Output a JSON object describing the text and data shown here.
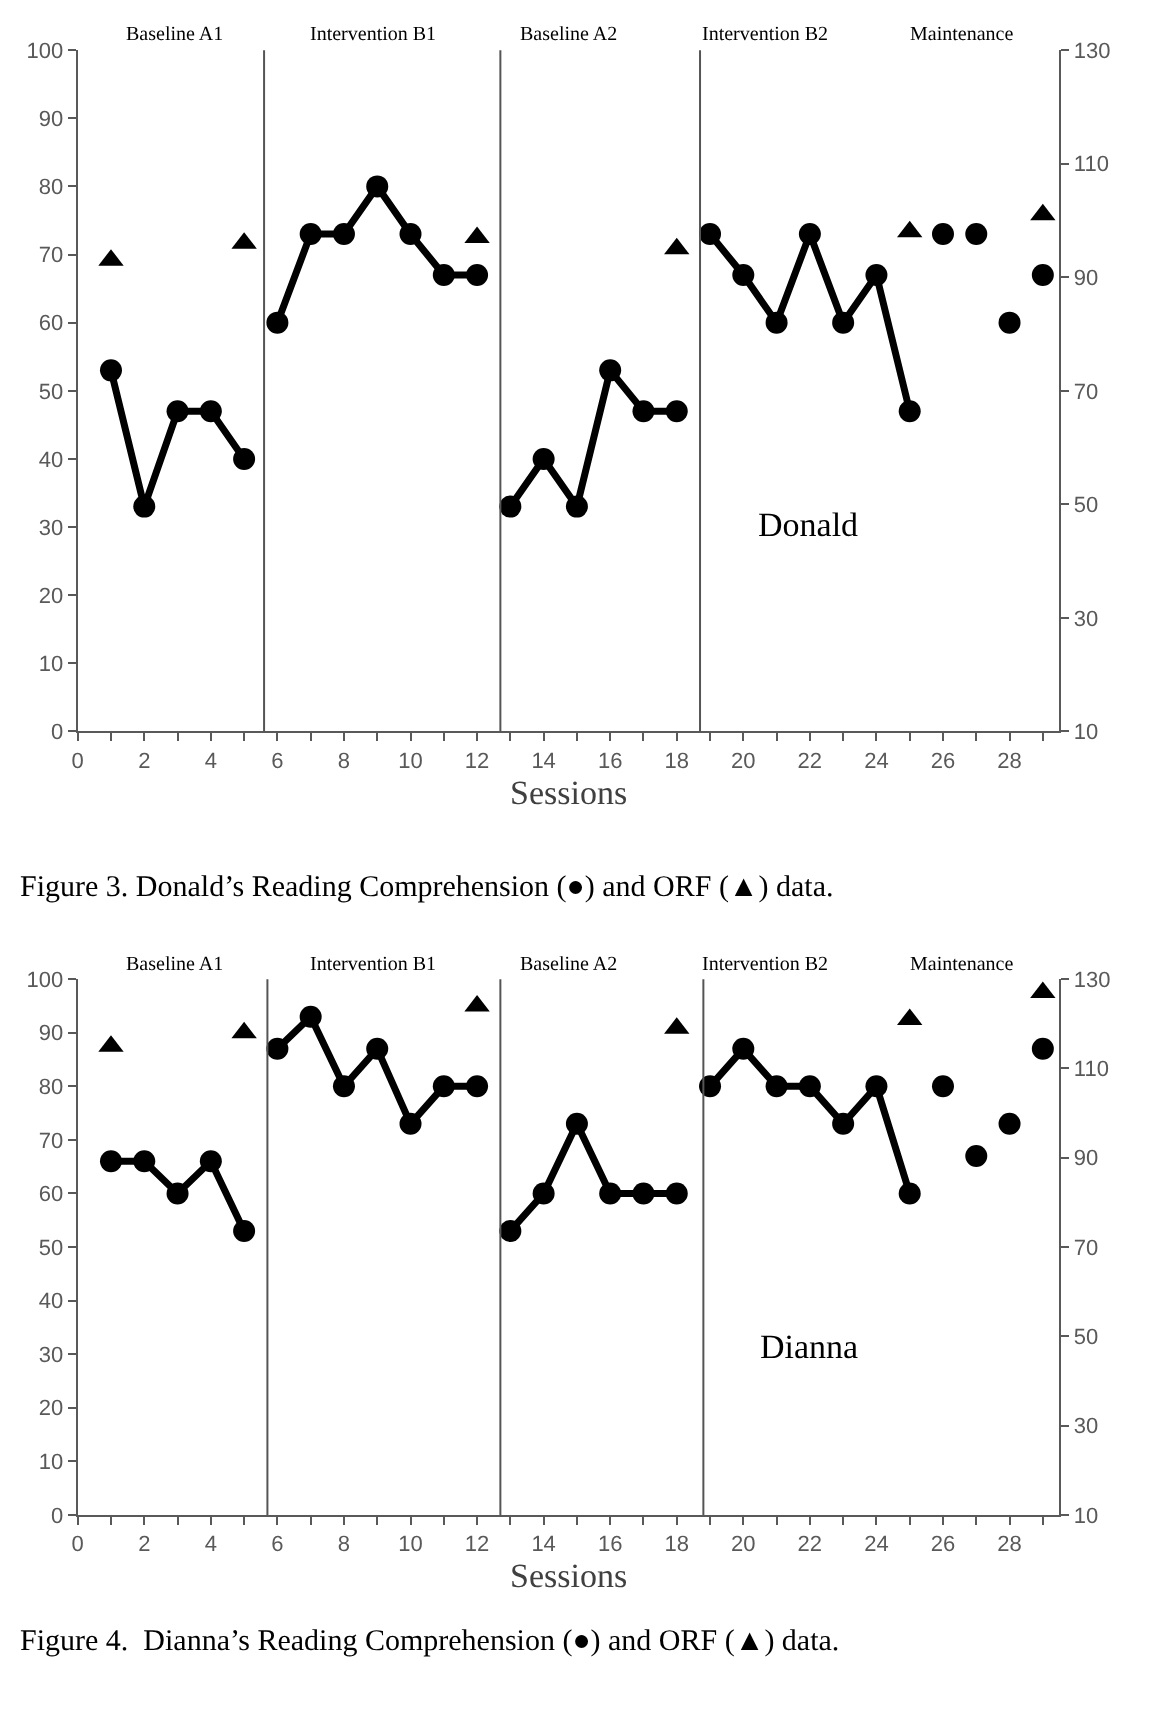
{
  "chart_data": [
    {
      "type": "line",
      "xlabel": "Sessions",
      "xlim": [
        0,
        29.5
      ],
      "xticks": [
        0,
        2,
        4,
        6,
        8,
        10,
        12,
        14,
        16,
        18,
        20,
        22,
        24,
        26,
        28
      ],
      "ylim": [
        0,
        100
      ],
      "yticks": [
        0,
        10,
        20,
        30,
        40,
        50,
        60,
        70,
        80,
        90,
        100
      ],
      "y2lim": [
        10,
        130
      ],
      "y2ticks": [
        10,
        30,
        50,
        70,
        90,
        110,
        130
      ],
      "series": [
        {
          "marker": "circle",
          "color": "#000000",
          "x": [
            1,
            2,
            3,
            4,
            5
          ],
          "values": [
            53,
            33,
            47,
            47,
            40
          ]
        },
        {
          "marker": "circle",
          "color": "#000000",
          "x": [
            6,
            7,
            8,
            9,
            10,
            11,
            12
          ],
          "values": [
            60,
            73,
            73,
            80,
            73,
            67,
            67
          ]
        },
        {
          "marker": "circle",
          "color": "#000000",
          "x": [
            13,
            14,
            15,
            16,
            17,
            18
          ],
          "values": [
            33,
            40,
            33,
            53,
            47,
            47
          ]
        },
        {
          "marker": "circle",
          "color": "#000000",
          "x": [
            19,
            20,
            21,
            22,
            23,
            24,
            25
          ],
          "values": [
            73,
            67,
            60,
            73,
            60,
            67,
            47
          ]
        },
        {
          "type": "scatter",
          "marker": "circle",
          "color": "#000000",
          "x": [
            26,
            27,
            28,
            29
          ],
          "values": [
            73,
            73,
            60,
            67
          ]
        },
        {
          "type": "scatter",
          "marker": "triangle",
          "axis": "y2",
          "color": "#000000",
          "x": [
            1,
            5,
            12,
            18,
            25,
            29
          ],
          "values": [
            93,
            96,
            97,
            95,
            98,
            101
          ]
        }
      ],
      "ref_lines": [
        {
          "axis": "x",
          "value": 5.6,
          "color": "#555555"
        },
        {
          "axis": "x",
          "value": 12.7,
          "color": "#555555"
        },
        {
          "axis": "x",
          "value": 18.7,
          "color": "#555555"
        }
      ],
      "annotations": [
        "Baseline A1",
        "Intervention B1",
        "Baseline A2",
        "Intervention B2",
        "Maintenance",
        "Donald",
        "Figure 3. Donald’s Reading Comprehension (●) and ORF (▲) data."
      ]
    },
    {
      "type": "line",
      "xlabel": "Sessions",
      "xlim": [
        0,
        29.5
      ],
      "xticks": [
        0,
        2,
        4,
        6,
        8,
        10,
        12,
        14,
        16,
        18,
        20,
        22,
        24,
        26,
        28
      ],
      "ylim": [
        0,
        100
      ],
      "yticks": [
        0,
        10,
        20,
        30,
        40,
        50,
        60,
        70,
        80,
        90,
        100
      ],
      "y2lim": [
        10,
        130
      ],
      "y2ticks": [
        10,
        30,
        50,
        70,
        90,
        110,
        130
      ],
      "series": [
        {
          "marker": "circle",
          "color": "#000000",
          "x": [
            1,
            2,
            3,
            4,
            5
          ],
          "values": [
            66,
            66,
            60,
            66,
            53
          ]
        },
        {
          "marker": "circle",
          "color": "#000000",
          "x": [
            6,
            7,
            8,
            9,
            10,
            11,
            12
          ],
          "values": [
            87,
            93,
            80,
            87,
            73,
            80,
            80
          ]
        },
        {
          "marker": "circle",
          "color": "#000000",
          "x": [
            13,
            14,
            15,
            16,
            17,
            18
          ],
          "values": [
            53,
            60,
            73,
            60,
            60,
            60
          ]
        },
        {
          "marker": "circle",
          "color": "#000000",
          "x": [
            19,
            20,
            21,
            22,
            23,
            24,
            25
          ],
          "values": [
            80,
            87,
            80,
            80,
            73,
            80,
            60
          ]
        },
        {
          "type": "scatter",
          "marker": "circle",
          "color": "#000000",
          "x": [
            26,
            27,
            28,
            29
          ],
          "values": [
            80,
            67,
            73,
            87
          ]
        },
        {
          "type": "scatter",
          "marker": "triangle",
          "axis": "y2",
          "color": "#000000",
          "x": [
            1,
            5,
            12,
            18,
            25,
            29
          ],
          "values": [
            115,
            118,
            124,
            119,
            121,
            127
          ]
        }
      ],
      "ref_lines": [
        {
          "axis": "x",
          "value": 5.7,
          "color": "#555555"
        },
        {
          "axis": "x",
          "value": 12.7,
          "color": "#555555"
        },
        {
          "axis": "x",
          "value": 18.8,
          "color": "#555555"
        }
      ],
      "annotations": [
        "Baseline A1",
        "Intervention B1",
        "Baseline A2",
        "Intervention B2",
        "Maintenance",
        "Dianna",
        "Figure 4.  Dianna’s Reading Comprehension (●) and ORF (▲) data."
      ]
    }
  ]
}
